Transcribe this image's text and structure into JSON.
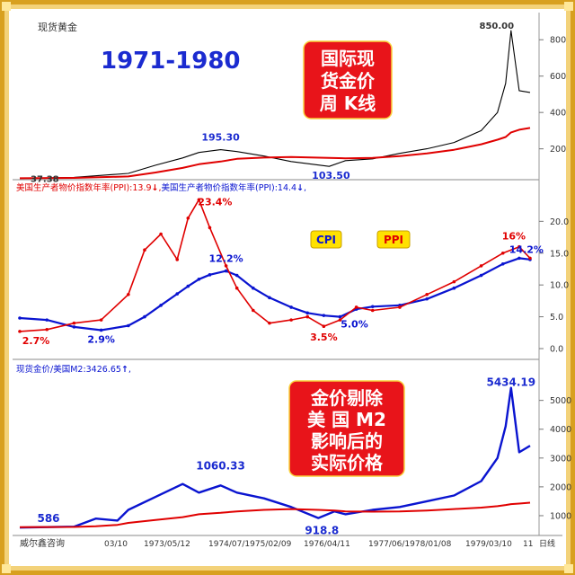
{
  "page": {
    "title": "现货黄金"
  },
  "colors": {
    "frame_outer": "#d8a020",
    "frame_inner": "#f3d27a",
    "price_line": "#000000",
    "ma_red": "#e00000",
    "cpi_blue": "#0a14d0",
    "ppi_red": "#e00000",
    "axis_text": "#333333",
    "badge_red": "#e8141a",
    "badge_text": "#ffffff",
    "legend_fill": "#ffe100",
    "title_blue": "#1b2bd0"
  },
  "overlays": {
    "period_title": "1971-1980",
    "badge_top": [
      "国际现",
      "货金价",
      "周 K线"
    ],
    "badge_bottom": [
      "金价剔除",
      "美  国 M2",
      "影响后的",
      "实际价格"
    ],
    "legend_cpi": "CPI",
    "legend_ppi": "PPI"
  },
  "panel_headers": {
    "middle_ppi": "美国生产者物价指数年率(PPI):13.9",
    "middle_ppi_arrow": "↓",
    "middle_sep": ",",
    "middle_ppi2": "美国生产者物价指数年率(PPI):14.4",
    "middle_ppi2_arrow": "↓",
    "middle_tail": ",",
    "bottom_label": "现货金价/美国M2:3426.65",
    "bottom_arrow": "↑",
    "bottom_tail": ","
  },
  "footer": {
    "brand": "威尔鑫咨询",
    "ticks": [
      "03/10",
      "1973/05/12",
      "1974/07/1975/02/09",
      "1976/04/11",
      "1977/06/1978/01/08",
      "1979/03/10",
      "11"
    ],
    "corner": "日线"
  },
  "chart_data": [
    {
      "type": "line",
      "title": "现货黄金",
      "yticks": [
        200,
        400,
        600,
        800
      ],
      "ylim": [
        50,
        900
      ],
      "x": [
        "1971",
        "1972",
        "1973",
        "1973.5",
        "1974",
        "1974.3",
        "1974.7",
        "1975",
        "1975.5",
        "1976",
        "1976.7",
        "1977",
        "1977.5",
        "1978",
        "1978.5",
        "1979",
        "1979.5",
        "1979.8",
        "1979.95",
        "1980.05",
        "1980.2",
        "1980.4"
      ],
      "series": [
        {
          "values": [
            37.38,
            43,
            65,
            110,
            150,
            180,
            195.3,
            185,
            160,
            130,
            103.5,
            135,
            145,
            175,
            200,
            235,
            300,
            400,
            560,
            850,
            520,
            510
          ]
        },
        {
          "values": [
            38,
            40,
            48,
            70,
            95,
            115,
            130,
            145,
            152,
            155,
            150,
            148,
            150,
            160,
            175,
            195,
            225,
            250,
            265,
            290,
            305,
            315
          ]
        }
      ],
      "annotations": [
        "37.38",
        "195.30",
        "103.50",
        "850.00"
      ]
    },
    {
      "type": "line",
      "yticks": [
        0.0,
        5.0,
        10.0,
        15.0,
        20.0
      ],
      "ylim": [
        0,
        24
      ],
      "x": [
        "1971",
        "1971.5",
        "1972",
        "1972.5",
        "1973",
        "1973.3",
        "1973.6",
        "1973.9",
        "1974.1",
        "1974.3",
        "1974.5",
        "1974.8",
        "1975",
        "1975.3",
        "1975.6",
        "1976",
        "1976.3",
        "1976.6",
        "1976.9",
        "1977.2",
        "1977.5",
        "1978",
        "1978.5",
        "1979",
        "1979.5",
        "1979.9",
        "1980.2",
        "1980.4"
      ],
      "series": [
        {
          "name": "CPI",
          "values": [
            4.8,
            4.5,
            3.4,
            2.9,
            3.6,
            5.0,
            6.8,
            8.6,
            9.8,
            10.9,
            11.6,
            12.2,
            11.5,
            9.5,
            8.0,
            6.5,
            5.6,
            5.2,
            5.0,
            6.2,
            6.6,
            6.8,
            7.8,
            9.5,
            11.5,
            13.3,
            14.2,
            14.0
          ]
        },
        {
          "name": "PPI",
          "values": [
            2.7,
            3.0,
            4.0,
            4.5,
            8.5,
            15.5,
            18.0,
            14.0,
            20.5,
            23.4,
            19.0,
            13.0,
            9.5,
            6.0,
            4.0,
            4.5,
            5.0,
            3.5,
            4.5,
            6.5,
            6.0,
            6.5,
            8.5,
            10.5,
            13.0,
            15.0,
            16.0,
            14.2
          ]
        }
      ],
      "annotations": [
        "2.7%",
        "2.9%",
        "23.4%",
        "12.2%",
        "3.5%",
        "5.0%",
        "16%",
        "14.2%"
      ]
    },
    {
      "type": "line",
      "yticks": [
        1000,
        2000,
        3000,
        4000,
        5000
      ],
      "ylim": [
        500,
        5800
      ],
      "x": [
        "1971",
        "1972",
        "1972.4",
        "1972.8",
        "1973",
        "1973.5",
        "1974",
        "1974.3",
        "1974.7",
        "1975",
        "1975.5",
        "1976",
        "1976.5",
        "1976.8",
        "1977",
        "1977.5",
        "1978",
        "1978.5",
        "1979",
        "1979.5",
        "1979.8",
        "1979.95",
        "1980.05",
        "1980.2",
        "1980.4"
      ],
      "series": [
        {
          "values": [
            586,
            620,
            900,
            830,
            1200,
            1650,
            2100,
            1800,
            2050,
            1800,
            1600,
            1300,
            918.8,
            1150,
            1050,
            1200,
            1300,
            1500,
            1700,
            2200,
            3000,
            4100,
            5434.19,
            3200,
            3426.65
          ]
        },
        {
          "values": [
            600,
            610,
            630,
            680,
            750,
            850,
            950,
            1050,
            1100,
            1150,
            1200,
            1230,
            1200,
            1180,
            1150,
            1140,
            1150,
            1180,
            1230,
            1280,
            1330,
            1370,
            1400,
            1420,
            1450
          ]
        }
      ],
      "annotations": [
        "586",
        "1060.33",
        "918.8",
        "5434.19"
      ]
    }
  ]
}
